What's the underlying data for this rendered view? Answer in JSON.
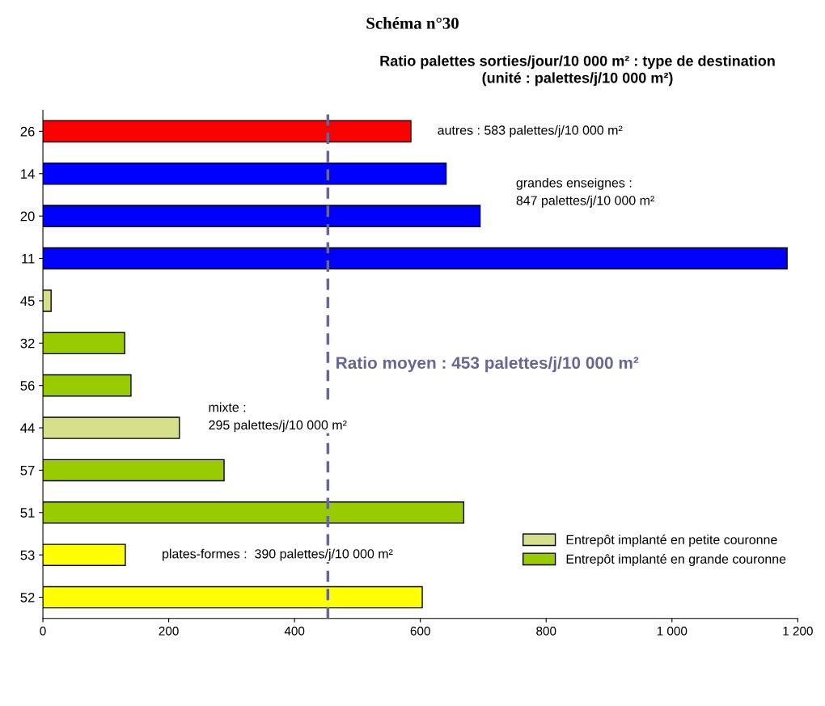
{
  "chart_data": {
    "type": "bar",
    "orientation": "horizontal",
    "title": "Schéma n°30",
    "subtitle": "Ratio palettes sorties/jour/10 000 m² : type de destination\n(unité : palettes/j/10 000 m²)",
    "categories": [
      "26",
      "14",
      "20",
      "11",
      "45",
      "32",
      "56",
      "44",
      "57",
      "51",
      "53",
      "52"
    ],
    "series": [
      {
        "color": "#ff0000",
        "values": [
          585,
          null,
          null,
          null,
          null,
          null,
          null,
          null,
          null,
          null,
          null,
          null
        ]
      },
      {
        "color": "#0000ff",
        "values": [
          null,
          641,
          695,
          1183,
          null,
          null,
          null,
          null,
          null,
          null,
          null,
          null
        ]
      },
      {
        "name": "Entrepôt implanté en petite couronne",
        "color": "#d6e08a",
        "values": [
          null,
          null,
          null,
          null,
          13,
          null,
          null,
          217,
          null,
          null,
          null,
          null
        ]
      },
      {
        "name": "Entrepôt implanté en grande couronne",
        "color": "#99cc00",
        "values": [
          null,
          null,
          null,
          null,
          null,
          130,
          140,
          null,
          288,
          669,
          null,
          null
        ]
      },
      {
        "color": "#ffff00",
        "values": [
          null,
          null,
          null,
          null,
          null,
          null,
          null,
          null,
          null,
          null,
          131,
          603
        ]
      }
    ],
    "xlim": [
      0,
      1200
    ],
    "xticks": [
      0,
      200,
      400,
      600,
      800,
      {
        "value": 1000,
        "label": "1 000"
      },
      {
        "value": 1200,
        "label": "1 200"
      }
    ],
    "ref_lines": [
      {
        "axis": "x",
        "value": 453,
        "label": "Ratio moyen : 453 palettes/j/10 000 m²",
        "color": "#666699",
        "line_style": "dashed"
      }
    ],
    "annotations": [
      "autres : 583 palettes/j/10 000 m²",
      "grandes enseignes :\n847 palettes/j/10 000 m²",
      "mixte :\n295 palettes/j/10 000 m²",
      "plates-formes :  390 palettes/j/10 000 m²"
    ],
    "legend": "right",
    "grid": false
  }
}
